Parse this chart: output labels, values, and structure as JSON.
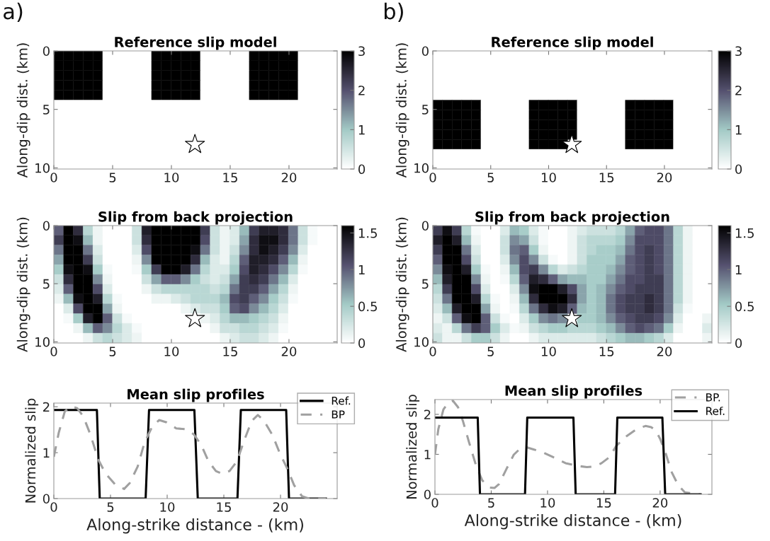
{
  "chart_data": [
    {
      "type": "heatmap",
      "title": "Reference slip model",
      "ylabel": "Along-dip dist. (km)",
      "annotations": [
        "a)"
      ],
      "xlim": [
        0,
        24.1
      ],
      "ylim": [
        10.1,
        0
      ],
      "xticks": [
        0,
        5,
        10,
        15,
        20
      ],
      "yticks": [
        0,
        5,
        10
      ],
      "clim": [
        0,
        3
      ],
      "cticks": [
        0,
        1,
        2,
        3
      ],
      "cells": [
        [
          3,
          3,
          3,
          3,
          3,
          0,
          0,
          0,
          0,
          0,
          3,
          3,
          3,
          3,
          3,
          0,
          0,
          0,
          0,
          0,
          3,
          3,
          3,
          3,
          3,
          0,
          0,
          0,
          0
        ],
        [
          3,
          3,
          3,
          3,
          3,
          0,
          0,
          0,
          0,
          0,
          3,
          3,
          3,
          3,
          3,
          0,
          0,
          0,
          0,
          0,
          3,
          3,
          3,
          3,
          3,
          0,
          0,
          0,
          0
        ],
        [
          3,
          3,
          3,
          3,
          3,
          0,
          0,
          0,
          0,
          0,
          3,
          3,
          3,
          3,
          3,
          0,
          0,
          0,
          0,
          0,
          3,
          3,
          3,
          3,
          3,
          0,
          0,
          0,
          0
        ],
        [
          3,
          3,
          3,
          3,
          3,
          0,
          0,
          0,
          0,
          0,
          3,
          3,
          3,
          3,
          3,
          0,
          0,
          0,
          0,
          0,
          3,
          3,
          3,
          3,
          3,
          0,
          0,
          0,
          0
        ],
        [
          3,
          3,
          3,
          3,
          3,
          0,
          0,
          0,
          0,
          0,
          3,
          3,
          3,
          3,
          3,
          0,
          0,
          0,
          0,
          0,
          3,
          3,
          3,
          3,
          3,
          0,
          0,
          0,
          0
        ],
        [
          0,
          0,
          0,
          0,
          0,
          0,
          0,
          0,
          0,
          0,
          0,
          0,
          0,
          0,
          0,
          0,
          0,
          0,
          0,
          0,
          0,
          0,
          0,
          0,
          0,
          0,
          0,
          0,
          0
        ],
        [
          0,
          0,
          0,
          0,
          0,
          0,
          0,
          0,
          0,
          0,
          0,
          0,
          0,
          0,
          0,
          0,
          0,
          0,
          0,
          0,
          0,
          0,
          0,
          0,
          0,
          0,
          0,
          0,
          0
        ],
        [
          0,
          0,
          0,
          0,
          0,
          0,
          0,
          0,
          0,
          0,
          0,
          0,
          0,
          0,
          0,
          0,
          0,
          0,
          0,
          0,
          0,
          0,
          0,
          0,
          0,
          0,
          0,
          0,
          0
        ],
        [
          0,
          0,
          0,
          0,
          0,
          0,
          0,
          0,
          0,
          0,
          0,
          0,
          0,
          0,
          0,
          0,
          0,
          0,
          0,
          0,
          0,
          0,
          0,
          0,
          0,
          0,
          0,
          0,
          0
        ],
        [
          0,
          0,
          0,
          0,
          0,
          0,
          0,
          0,
          0,
          0,
          0,
          0,
          0,
          0,
          0,
          0,
          0,
          0,
          0,
          0,
          0,
          0,
          0,
          0,
          0,
          0,
          0,
          0,
          0
        ],
        [
          0,
          0,
          0,
          0,
          0,
          0,
          0,
          0,
          0,
          0,
          0,
          0,
          0,
          0,
          0,
          0,
          0,
          0,
          0,
          0,
          0,
          0,
          0,
          0,
          0,
          0,
          0,
          0,
          0
        ],
        [
          0,
          0,
          0,
          0,
          0,
          0,
          0,
          0,
          0,
          0,
          0,
          0,
          0,
          0,
          0,
          0,
          0,
          0,
          0,
          0,
          0,
          0,
          0,
          0,
          0,
          0,
          0,
          0,
          0
        ]
      ],
      "series": [
        {
          "type": "scatter",
          "x": [
            12
          ],
          "values": [
            8
          ],
          "color": "#ffffff",
          "marker": "star"
        }
      ]
    },
    {
      "type": "heatmap",
      "title": "Reference slip model",
      "ylabel": "Along-dip dist. (km)",
      "annotations": [
        "b)"
      ],
      "xlim": [
        0,
        24.1
      ],
      "ylim": [
        10.1,
        0
      ],
      "xticks": [
        0,
        5,
        10,
        15,
        20
      ],
      "yticks": [
        0,
        5,
        10
      ],
      "clim": [
        0,
        3
      ],
      "cticks": [
        0,
        1,
        2,
        3
      ],
      "cells": [
        [
          0,
          0,
          0,
          0,
          0,
          0,
          0,
          0,
          0,
          0,
          0,
          0,
          0,
          0,
          0,
          0,
          0,
          0,
          0,
          0,
          0,
          0,
          0,
          0,
          0,
          0,
          0,
          0,
          0
        ],
        [
          0,
          0,
          0,
          0,
          0,
          0,
          0,
          0,
          0,
          0,
          0,
          0,
          0,
          0,
          0,
          0,
          0,
          0,
          0,
          0,
          0,
          0,
          0,
          0,
          0,
          0,
          0,
          0,
          0
        ],
        [
          0,
          0,
          0,
          0,
          0,
          0,
          0,
          0,
          0,
          0,
          0,
          0,
          0,
          0,
          0,
          0,
          0,
          0,
          0,
          0,
          0,
          0,
          0,
          0,
          0,
          0,
          0,
          0,
          0
        ],
        [
          0,
          0,
          0,
          0,
          0,
          0,
          0,
          0,
          0,
          0,
          0,
          0,
          0,
          0,
          0,
          0,
          0,
          0,
          0,
          0,
          0,
          0,
          0,
          0,
          0,
          0,
          0,
          0,
          0
        ],
        [
          0,
          0,
          0,
          0,
          0,
          0,
          0,
          0,
          0,
          0,
          0,
          0,
          0,
          0,
          0,
          0,
          0,
          0,
          0,
          0,
          0,
          0,
          0,
          0,
          0,
          0,
          0,
          0,
          0
        ],
        [
          3,
          3,
          3,
          3,
          3,
          0,
          0,
          0,
          0,
          0,
          3,
          3,
          3,
          3,
          3,
          0,
          0,
          0,
          0,
          0,
          3,
          3,
          3,
          3,
          3,
          0,
          0,
          0,
          0
        ],
        [
          3,
          3,
          3,
          3,
          3,
          0,
          0,
          0,
          0,
          0,
          3,
          3,
          3,
          3,
          3,
          0,
          0,
          0,
          0,
          0,
          3,
          3,
          3,
          3,
          3,
          0,
          0,
          0,
          0
        ],
        [
          3,
          3,
          3,
          3,
          3,
          0,
          0,
          0,
          0,
          0,
          3,
          3,
          3,
          3,
          3,
          0,
          0,
          0,
          0,
          0,
          3,
          3,
          3,
          3,
          3,
          0,
          0,
          0,
          0
        ],
        [
          3,
          3,
          3,
          3,
          3,
          0,
          0,
          0,
          0,
          0,
          3,
          3,
          3,
          3,
          3,
          0,
          0,
          0,
          0,
          0,
          3,
          3,
          3,
          3,
          3,
          0,
          0,
          0,
          0
        ],
        [
          3,
          3,
          3,
          3,
          3,
          0,
          0,
          0,
          0,
          0,
          3,
          3,
          3,
          3,
          null,
          0,
          0,
          0,
          0,
          0,
          3,
          3,
          3,
          3,
          3,
          0,
          0,
          0,
          0
        ],
        [
          0,
          0,
          0,
          0,
          0,
          0,
          0,
          0,
          0,
          0,
          0,
          0,
          0,
          0,
          0,
          0,
          0,
          0,
          0,
          0,
          0,
          0,
          0,
          0,
          0,
          0,
          0,
          0,
          0
        ],
        [
          0,
          0,
          0,
          0,
          0,
          0,
          0,
          0,
          0,
          0,
          0,
          0,
          0,
          0,
          0,
          0,
          0,
          0,
          0,
          0,
          0,
          0,
          0,
          0,
          0,
          0,
          0,
          0,
          0
        ]
      ],
      "series": [
        {
          "type": "scatter",
          "x": [
            12
          ],
          "values": [
            8
          ],
          "color": "#ffffff",
          "marker": "star"
        }
      ]
    },
    {
      "type": "heatmap",
      "title": "Slip from back projection",
      "ylabel": "Along-dip dist. (km)",
      "xlim": [
        0,
        24.1
      ],
      "ylim": [
        10.1,
        0
      ],
      "xticks": [
        0,
        5,
        10,
        15,
        20
      ],
      "yticks": [
        0,
        5,
        10
      ],
      "clim": [
        0,
        1.6
      ],
      "cticks": [
        0,
        0.5,
        1,
        1.5
      ],
      "cells": [
        [
          1.0,
          1.6,
          1.3,
          0.4,
          0.1,
          0,
          0,
          0,
          0.3,
          1.4,
          1.6,
          1.6,
          1.6,
          1.6,
          1.6,
          1.2,
          0.3,
          0.1,
          0.2,
          0.6,
          1.2,
          1.4,
          1.4,
          1.3,
          0.9,
          0.3,
          0.05,
          0,
          0
        ],
        [
          1.2,
          1.6,
          1.5,
          0.6,
          0.1,
          0,
          0,
          0,
          0.3,
          1.3,
          1.6,
          1.6,
          1.6,
          1.6,
          1.6,
          1.1,
          0.3,
          0.1,
          0.2,
          0.7,
          1.3,
          1.5,
          1.5,
          1.3,
          0.9,
          0.3,
          0.05,
          0,
          0
        ],
        [
          0.9,
          1.6,
          1.6,
          0.9,
          0.2,
          0,
          0,
          0,
          0.2,
          1.1,
          1.6,
          1.6,
          1.6,
          1.6,
          1.5,
          0.9,
          0.3,
          0.1,
          0.3,
          0.8,
          1.3,
          1.5,
          1.4,
          1.2,
          0.8,
          0.2,
          0,
          0,
          0
        ],
        [
          0.7,
          1.6,
          1.6,
          1.2,
          0.3,
          0,
          0,
          0,
          0.1,
          0.8,
          1.6,
          1.6,
          1.6,
          1.6,
          1.3,
          0.6,
          0.2,
          0.1,
          0.4,
          1.0,
          1.4,
          1.4,
          1.3,
          1.0,
          0.6,
          0.1,
          0,
          0,
          0
        ],
        [
          0.5,
          1.5,
          1.6,
          1.5,
          0.5,
          0.05,
          0,
          0,
          0.05,
          0.5,
          1.2,
          1.6,
          1.6,
          1.4,
          0.9,
          0.4,
          0.2,
          0.2,
          0.5,
          1.1,
          1.4,
          1.3,
          1.1,
          0.8,
          0.4,
          0.05,
          0,
          0,
          0
        ],
        [
          0.3,
          1.3,
          1.6,
          1.6,
          0.8,
          0.1,
          0,
          0,
          0,
          0.3,
          0.7,
          1.0,
          1.0,
          0.8,
          0.5,
          0.3,
          0.2,
          0.3,
          0.7,
          1.2,
          1.3,
          1.2,
          0.9,
          0.6,
          0.2,
          0,
          0,
          0,
          0
        ],
        [
          0.2,
          1.0,
          1.6,
          1.6,
          1.1,
          0.2,
          0,
          0,
          0,
          0.1,
          0.3,
          0.4,
          0.4,
          0.4,
          0.4,
          0.4,
          0.3,
          0.4,
          0.9,
          1.2,
          1.2,
          1.0,
          0.7,
          0.4,
          0.1,
          0,
          0,
          0,
          0
        ],
        [
          0.1,
          0.6,
          1.5,
          1.6,
          1.4,
          0.4,
          0.05,
          0,
          0,
          0,
          0.1,
          0.1,
          0.2,
          0.3,
          0.4,
          0.4,
          0.4,
          0.6,
          1.1,
          1.2,
          1.0,
          0.8,
          0.5,
          0.3,
          0.05,
          0,
          0,
          0,
          0
        ],
        [
          0,
          0.2,
          1.1,
          1.6,
          1.6,
          0.7,
          0.1,
          0,
          0,
          0,
          0,
          0,
          0,
          0.1,
          0.2,
          0.3,
          0.3,
          0.5,
          1.0,
          1.1,
          0.8,
          0.6,
          0.4,
          0.2,
          0,
          0,
          0,
          0,
          0
        ],
        [
          0,
          0.05,
          0.5,
          1.4,
          1.6,
          1.0,
          0.3,
          0.05,
          0,
          0,
          0,
          0,
          0,
          0,
          0,
          0.1,
          0.2,
          0.4,
          0.6,
          0.6,
          0.5,
          0.4,
          0.3,
          0.1,
          0,
          0,
          0,
          0,
          0
        ],
        [
          0,
          0,
          0.1,
          0.6,
          1.0,
          0.8,
          0.4,
          0.2,
          0.05,
          0,
          0,
          0,
          0,
          0,
          0,
          0,
          0.1,
          0.3,
          0.3,
          0.4,
          0.4,
          0.3,
          0.2,
          0.05,
          0,
          0,
          0,
          0,
          0
        ],
        [
          0,
          0,
          0,
          0.1,
          0.3,
          0.4,
          0.3,
          0.2,
          0.1,
          0,
          0,
          0,
          0,
          0,
          0,
          0,
          0,
          0.1,
          0.2,
          0.3,
          0.3,
          0.2,
          0.1,
          0,
          0,
          0,
          0,
          0,
          0
        ]
      ],
      "series": [
        {
          "type": "scatter",
          "x": [
            12
          ],
          "values": [
            8
          ],
          "color": "#ffffff",
          "marker": "star"
        }
      ]
    },
    {
      "type": "heatmap",
      "title": "Slip from back projection",
      "ylabel": "Along-dip dist. (km)",
      "xlim": [
        0,
        24.1
      ],
      "ylim": [
        10.1,
        0
      ],
      "xticks": [
        0,
        5,
        10,
        15,
        20
      ],
      "yticks": [
        0,
        5,
        10
      ],
      "clim": [
        0,
        1.6
      ],
      "cticks": [
        0,
        0.5,
        1,
        1.5
      ],
      "cells": [
        [
          1.2,
          1.5,
          1.2,
          0.4,
          0.05,
          0,
          0,
          0.2,
          0.6,
          0.5,
          0.2,
          0.05,
          0,
          0,
          0.1,
          0.2,
          0.3,
          0.3,
          0.3,
          0.4,
          0.7,
          1.0,
          1.1,
          1.1,
          0.9,
          0.4,
          0.1,
          0,
          0
        ],
        [
          1.4,
          1.6,
          1.4,
          0.6,
          0.1,
          0,
          0,
          0.3,
          0.8,
          0.7,
          0.3,
          0.05,
          0,
          0,
          0.1,
          0.3,
          0.4,
          0.4,
          0.4,
          0.5,
          0.8,
          1.1,
          1.1,
          1.1,
          0.9,
          0.4,
          0.1,
          0,
          0
        ],
        [
          1.2,
          1.6,
          1.6,
          0.9,
          0.2,
          0,
          0,
          0.3,
          0.9,
          1.0,
          0.5,
          0.1,
          0,
          0,
          0.1,
          0.3,
          0.4,
          0.5,
          0.5,
          0.6,
          0.9,
          1.1,
          1.2,
          1.1,
          0.9,
          0.4,
          0.1,
          0,
          0
        ],
        [
          1.0,
          1.6,
          1.6,
          1.1,
          0.3,
          0,
          0,
          0.2,
          0.8,
          1.1,
          0.8,
          0.3,
          0.05,
          0,
          0.1,
          0.3,
          0.5,
          0.5,
          0.5,
          0.7,
          1.0,
          1.1,
          1.2,
          1.1,
          0.9,
          0.4,
          0.1,
          0,
          0
        ],
        [
          0.8,
          1.5,
          1.6,
          1.4,
          0.5,
          0.05,
          0,
          0.1,
          0.6,
          1.1,
          1.2,
          0.8,
          0.4,
          0.2,
          0.3,
          0.4,
          0.5,
          0.5,
          0.6,
          0.8,
          1.0,
          1.1,
          1.2,
          1.1,
          0.9,
          0.4,
          0.1,
          0,
          0
        ],
        [
          0.6,
          1.4,
          1.6,
          1.6,
          0.8,
          0.1,
          0,
          0.05,
          0.4,
          1.0,
          1.4,
          1.3,
          1.0,
          0.7,
          0.6,
          0.6,
          0.5,
          0.5,
          0.7,
          0.9,
          1.1,
          1.1,
          1.2,
          1.2,
          0.9,
          0.4,
          0.1,
          0,
          0
        ],
        [
          0.4,
          1.2,
          1.6,
          1.6,
          1.1,
          0.2,
          0,
          0,
          0.2,
          0.8,
          1.5,
          1.6,
          1.6,
          1.4,
          1.1,
          0.7,
          0.5,
          0.6,
          0.8,
          1.0,
          1.1,
          1.2,
          1.2,
          1.2,
          0.9,
          0.4,
          0.1,
          0,
          0
        ],
        [
          0.3,
          0.9,
          1.6,
          1.6,
          1.4,
          0.4,
          0.05,
          0,
          0.1,
          0.6,
          1.3,
          1.6,
          1.6,
          1.6,
          1.3,
          0.7,
          0.5,
          0.6,
          0.9,
          1.1,
          1.2,
          1.2,
          1.3,
          1.2,
          0.9,
          0.4,
          0.1,
          0,
          0
        ],
        [
          0.2,
          0.6,
          1.4,
          1.6,
          1.6,
          0.7,
          0.1,
          0,
          0.05,
          0.4,
          0.9,
          1.3,
          1.5,
          1.4,
          1.0,
          0.6,
          0.5,
          0.6,
          0.9,
          1.1,
          1.2,
          1.2,
          1.3,
          1.2,
          0.9,
          0.3,
          0.05,
          0,
          0
        ],
        [
          0.1,
          0.3,
          1.0,
          1.5,
          1.6,
          1.0,
          0.3,
          0.05,
          0,
          0.2,
          0.5,
          0.8,
          0.9,
          0.8,
          null,
          0.5,
          0.5,
          0.6,
          0.8,
          1.0,
          1.1,
          1.2,
          1.2,
          1.1,
          0.8,
          0.2,
          0,
          0,
          0.1
        ],
        [
          0.2,
          0.1,
          0.4,
          0.9,
          1.2,
          1.0,
          0.5,
          0.2,
          0.05,
          0.1,
          0.3,
          0.4,
          0.5,
          0.5,
          0.4,
          0.4,
          0.4,
          0.5,
          0.6,
          0.8,
          1.0,
          1.1,
          1.0,
          0.9,
          0.5,
          0.1,
          0,
          0,
          0.2
        ],
        [
          0.3,
          0.1,
          0.1,
          0.3,
          0.5,
          0.5,
          0.3,
          0.1,
          0,
          0,
          0.1,
          0.2,
          0.2,
          0.2,
          0.2,
          0.2,
          0.2,
          0.3,
          0.4,
          0.5,
          0.6,
          0.6,
          0.5,
          0.4,
          0.2,
          0,
          0,
          0,
          0.1
        ]
      ],
      "series": [
        {
          "type": "scatter",
          "x": [
            12
          ],
          "values": [
            8
          ],
          "color": "#ffffff",
          "marker": "star"
        }
      ]
    },
    {
      "type": "line",
      "title": "Mean slip profiles",
      "xlabel": "Along-strike distance - (km)",
      "ylabel": "Normalized slip",
      "xlim": [
        0,
        25
      ],
      "ylim": [
        0,
        2.08
      ],
      "xticks": [
        0,
        5,
        10,
        15,
        20
      ],
      "yticks": [
        0,
        1,
        2
      ],
      "legend": "top right",
      "grid": false,
      "series": [
        {
          "name": "Ref.",
          "color": "#000000",
          "line_style": "solid",
          "x": [
            0,
            3.8,
            4.05,
            8.1,
            8.4,
            12.4,
            12.7,
            16.2,
            16.5,
            20.5,
            20.75,
            24
          ],
          "values": [
            1.93,
            1.93,
            0,
            0,
            1.93,
            1.93,
            0,
            0,
            1.93,
            1.93,
            0,
            0
          ]
        },
        {
          "name": "BP",
          "color": "#a0a0a0",
          "line_style": "dashed",
          "x": [
            0,
            0.43,
            0.97,
            1.5,
            2.06,
            2.6,
            3.25,
            3.9,
            4.55,
            5.4,
            6.2,
            6.7,
            7.4,
            8.0,
            8.7,
            9.3,
            9.95,
            10.8,
            11.7,
            12.35,
            13.0,
            13.65,
            14.3,
            14.85,
            15.5,
            16.15,
            16.8,
            17.45,
            18.0,
            18.5,
            19.3,
            19.9,
            20.6,
            21.2,
            21.9,
            22.5,
            24
          ],
          "values": [
            0.91,
            1.43,
            1.9,
            2.01,
            1.97,
            1.79,
            1.38,
            0.86,
            0.55,
            0.31,
            0.21,
            0.34,
            0.7,
            1.22,
            1.58,
            1.71,
            1.66,
            1.53,
            1.51,
            1.4,
            1.17,
            0.81,
            0.6,
            0.54,
            0.6,
            0.81,
            1.27,
            1.69,
            1.82,
            1.71,
            1.38,
            1.01,
            0.65,
            0.29,
            0.05,
            0,
            0
          ]
        }
      ]
    },
    {
      "type": "line",
      "title": "Mean slip profiles",
      "xlabel": "Along-strike distance - (km)",
      "ylabel": "Normalized slip",
      "xlim": [
        0,
        24.6
      ],
      "ylim": [
        0,
        2.37
      ],
      "xticks": [
        0,
        5,
        10,
        15,
        20
      ],
      "yticks": [
        0,
        1,
        2
      ],
      "legend": "top right",
      "grid": false,
      "series": [
        {
          "name": "BP.",
          "color": "#a0a0a0",
          "line_style": "dashed",
          "x": [
            0,
            0.3,
            0.75,
            1.2,
            1.6,
            2.05,
            2.5,
            3.0,
            3.65,
            4.2,
            4.85,
            5.3,
            5.7,
            6.4,
            7.0,
            7.7,
            8.1,
            8.8,
            9.65,
            10.5,
            11.6,
            12.7,
            13.5,
            14.2,
            14.8,
            15.5,
            16.1,
            17.0,
            17.9,
            18.7,
            19.2,
            19.6,
            20.0,
            20.5,
            21.0,
            21.6,
            22.2,
            22.9,
            23.6
          ],
          "values": [
            0.99,
            1.63,
            2.12,
            2.3,
            2.34,
            2.18,
            1.82,
            1.33,
            0.72,
            0.35,
            0.17,
            0.16,
            0.26,
            0.66,
            0.99,
            1.18,
            1.18,
            1.12,
            1.04,
            0.93,
            0.78,
            0.71,
            0.68,
            0.7,
            0.78,
            0.93,
            1.21,
            1.45,
            1.63,
            1.71,
            1.68,
            1.6,
            1.39,
            1.02,
            0.57,
            0.23,
            0.05,
            0.02,
            0
          ]
        },
        {
          "name": "Ref.",
          "color": "#000000",
          "line_style": "solid",
          "x": [
            0,
            3.8,
            4.0,
            8.0,
            8.2,
            12.3,
            12.5,
            16.0,
            16.2,
            20.2,
            20.45,
            23.6
          ],
          "values": [
            1.92,
            1.92,
            0,
            0,
            1.92,
            1.92,
            0,
            0,
            1.92,
            1.92,
            0,
            0
          ]
        }
      ]
    }
  ]
}
